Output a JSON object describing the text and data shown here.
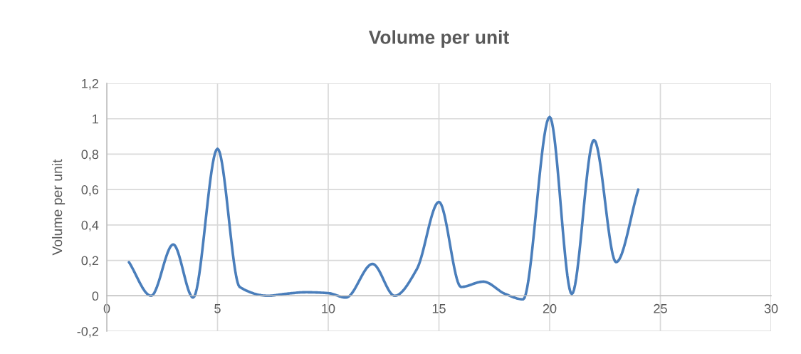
{
  "chart_data": {
    "type": "line",
    "title": "Volume per unit",
    "ylabel": "Volume per unit",
    "x": [
      1,
      2,
      3,
      3.9,
      5,
      6,
      7.3,
      8,
      9,
      10,
      10.8,
      12,
      13,
      14,
      15,
      16,
      17,
      18,
      18.8,
      20,
      21,
      22,
      23,
      24
    ],
    "series": [
      {
        "color": "#4a7ebb",
        "values": [
          0.19,
          0.0,
          0.29,
          -0.01,
          0.83,
          0.05,
          0.0,
          0.01,
          0.02,
          0.015,
          -0.01,
          0.18,
          0.0,
          0.15,
          0.53,
          0.05,
          0.08,
          0.01,
          -0.02,
          1.01,
          0.01,
          0.88,
          0.19,
          0.6
        ]
      }
    ],
    "xlim": [
      0,
      30
    ],
    "xticks": [
      0,
      5,
      10,
      15,
      20,
      25,
      30
    ],
    "ylim": [
      -0.2,
      1.2
    ],
    "yticks": [
      {
        "value": -0.2,
        "label": "-0,2"
      },
      {
        "value": 0,
        "label": "0"
      },
      {
        "value": 0.2,
        "label": "0,2"
      },
      {
        "value": 0.4,
        "label": "0,4"
      },
      {
        "value": 0.6,
        "label": "0,6"
      },
      {
        "value": 0.8,
        "label": "0,8"
      },
      {
        "value": 1,
        "label": "1"
      },
      {
        "value": 1.2,
        "label": "1,2"
      }
    ],
    "grid": true,
    "marker": "none",
    "line_style": "solid"
  }
}
